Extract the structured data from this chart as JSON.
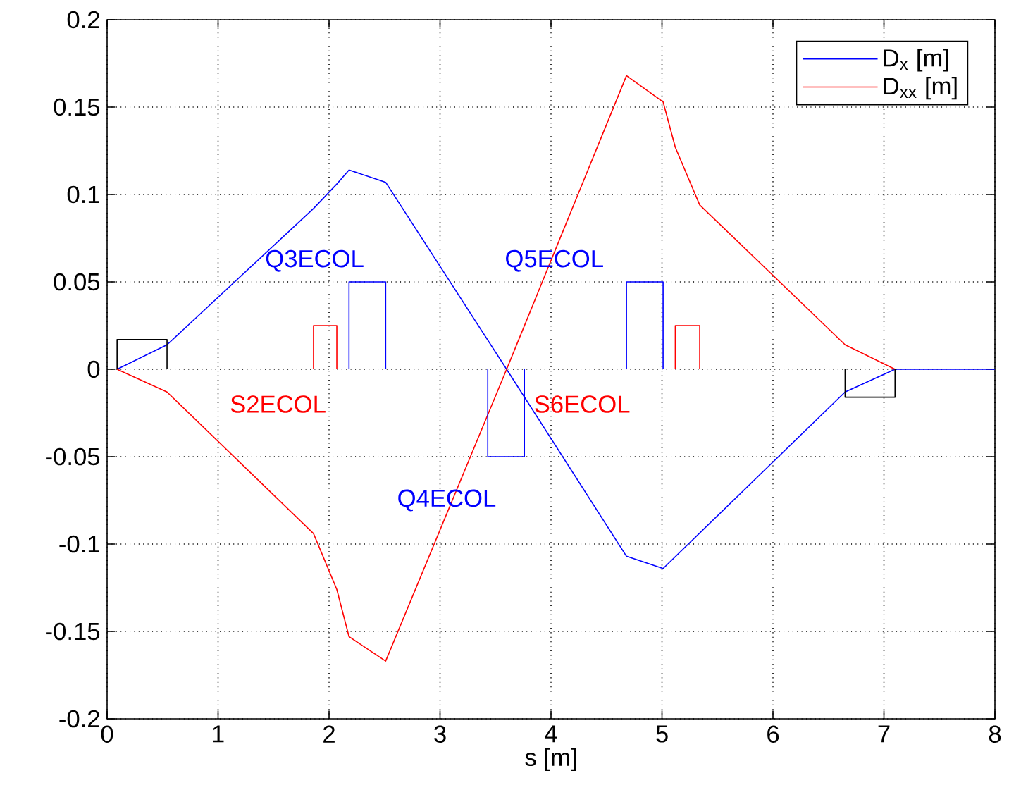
{
  "chart_data": {
    "type": "line",
    "xlabel": "s [m]",
    "xlim": [
      0,
      8
    ],
    "xticks": [
      0,
      1,
      2,
      3,
      4,
      5,
      6,
      7,
      8
    ],
    "ylim": [
      -0.2,
      0.2
    ],
    "yticks": [
      -0.2,
      -0.15,
      -0.1,
      -0.05,
      0,
      0.05,
      0.1,
      0.15,
      0.2
    ],
    "grid": true,
    "legend": "top right",
    "line_style": "solid",
    "marker": "none",
    "series": [
      {
        "name": "D$_{x}$ [m]",
        "color": "#0000ff",
        "x": [
          0.09,
          0.54,
          1.86,
          2.07,
          2.18,
          2.51,
          3.6,
          4.68,
          5.01,
          6.65,
          7.1,
          8
        ],
        "values": [
          0,
          0.014,
          0.092,
          0.106,
          0.114,
          0.107,
          0,
          -0.107,
          -0.114,
          -0.013,
          0,
          0
        ]
      },
      {
        "name": "D$_{xx}$ [m]",
        "color": "#ff0000",
        "x": [
          0.09,
          0.54,
          1.86,
          2.07,
          2.18,
          2.51,
          3.6,
          4.68,
          5.01,
          5.12,
          5.34,
          6.65,
          7.1
        ],
        "values": [
          0,
          -0.013,
          -0.094,
          -0.126,
          -0.153,
          -0.167,
          0,
          0.168,
          0.153,
          0.127,
          0.094,
          0.014,
          0
        ]
      },
      {
        "color": "#000000",
        "x": [
          0.09,
          0.09,
          0.54,
          0.54
        ],
        "values": [
          0,
          0.017,
          0.017,
          0
        ]
      },
      {
        "color": "#ff0000",
        "x": [
          1.86,
          1.86,
          2.07,
          2.07
        ],
        "values": [
          0,
          0.025,
          0.025,
          0
        ]
      },
      {
        "color": "#0000ff",
        "x": [
          2.18,
          2.18,
          2.51,
          2.51
        ],
        "values": [
          0,
          0.05,
          0.05,
          0
        ]
      },
      {
        "color": "#0000ff",
        "x": [
          3.43,
          3.43,
          3.76,
          3.76
        ],
        "values": [
          0,
          -0.05,
          -0.05,
          0
        ]
      },
      {
        "color": "#0000ff",
        "x": [
          4.68,
          4.68,
          5.01,
          5.01
        ],
        "values": [
          0,
          0.05,
          0.05,
          0
        ]
      },
      {
        "color": "#ff0000",
        "x": [
          5.12,
          5.12,
          5.34,
          5.34
        ],
        "values": [
          0,
          0.025,
          0.025,
          0
        ]
      },
      {
        "color": "#000000",
        "x": [
          6.65,
          6.65,
          7.1,
          7.1
        ],
        "values": [
          0,
          -0.016,
          -0.016,
          0
        ]
      }
    ],
    "annotations": [
      "Q3ECOL",
      "S2ECOL",
      "Q4ECOL",
      "Q5ECOL",
      "S6ECOL"
    ]
  }
}
